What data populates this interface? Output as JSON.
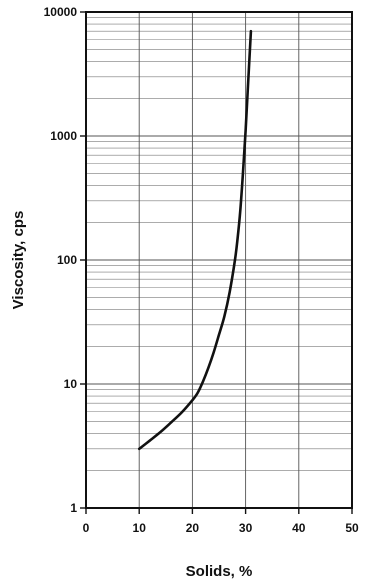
{
  "chart_data": {
    "type": "line",
    "title": "",
    "xlabel": "Solids, %",
    "ylabel": "Viscosity, cps",
    "xlim": [
      0,
      50
    ],
    "ylim": [
      1,
      10000
    ],
    "yscale": "log",
    "grid": true,
    "xticks": [
      "0",
      "10",
      "20",
      "30",
      "40",
      "50"
    ],
    "yticks": [
      "1",
      "10",
      "100",
      "1000",
      "10000"
    ],
    "series": [
      {
        "x": [
          10,
          12,
          14,
          16,
          18,
          20,
          21,
          22,
          23,
          24,
          25,
          26,
          27,
          28,
          28.5,
          29,
          29.5,
          30,
          30.5,
          31
        ],
        "y": [
          3,
          3.5,
          4.1,
          4.9,
          5.9,
          7.4,
          8.5,
          10.5,
          13.5,
          18,
          25,
          35,
          55,
          100,
          150,
          250,
          500,
          1100,
          2800,
          7000
        ]
      }
    ]
  }
}
